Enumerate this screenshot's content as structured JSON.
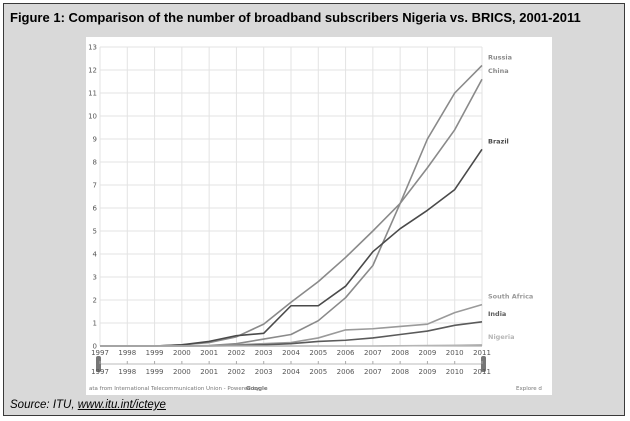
{
  "figure": {
    "title": "Figure 1: Comparison of the number of broadband subscribers Nigeria vs. BRICS, 2001-2011",
    "source_prefix": "Source: ITU, ",
    "source_link": "www.itu.int/icteye"
  },
  "chart_footer": {
    "attribution": "ata from International Telecommunication Union - Powered by",
    "powered_by": "Google",
    "explore": "Explore d"
  },
  "chart_data": {
    "type": "line",
    "title": "",
    "xlabel": "",
    "ylabel": "",
    "x": [
      1997,
      1998,
      1999,
      2000,
      2001,
      2002,
      2003,
      2004,
      2005,
      2006,
      2007,
      2008,
      2009,
      2010,
      2011
    ],
    "xlim": [
      1997,
      2011
    ],
    "ylim": [
      0,
      13
    ],
    "yticks": [
      0,
      1,
      2,
      3,
      4,
      5,
      6,
      7,
      8,
      9,
      10,
      11,
      12,
      13
    ],
    "grid": true,
    "timeline_ticks": [
      1997,
      1998,
      1999,
      2000,
      2001,
      2002,
      2003,
      2004,
      2005,
      2006,
      2007,
      2008,
      2009,
      2010,
      2011
    ],
    "series": [
      {
        "name": "Russia",
        "color": "#8a8a8a",
        "values": [
          0,
          0,
          0,
          0,
          0.02,
          0.1,
          0.3,
          0.5,
          1.1,
          2.1,
          3.5,
          6.2,
          9.0,
          11.0,
          12.2
        ]
      },
      {
        "name": "China",
        "color": "#8a8a8a",
        "values": [
          0,
          0,
          0,
          0.05,
          0.15,
          0.4,
          0.95,
          1.9,
          2.8,
          3.85,
          5.0,
          6.2,
          7.75,
          9.4,
          11.6
        ]
      },
      {
        "name": "Brazil",
        "color": "#4a4a4a",
        "values": [
          0,
          0,
          0,
          0.05,
          0.2,
          0.45,
          0.55,
          1.75,
          1.75,
          2.6,
          4.1,
          5.1,
          5.9,
          6.8,
          8.55
        ]
      },
      {
        "name": "South Africa",
        "color": "#9a9a9a",
        "values": [
          0,
          0,
          0,
          0,
          0,
          0.05,
          0.1,
          0.15,
          0.35,
          0.7,
          0.75,
          0.85,
          0.95,
          1.45,
          1.8
        ]
      },
      {
        "name": "India",
        "color": "#5a5a5a",
        "values": [
          0,
          0,
          0,
          0,
          0,
          0.02,
          0.05,
          0.1,
          0.2,
          0.25,
          0.35,
          0.5,
          0.65,
          0.9,
          1.05
        ]
      },
      {
        "name": "Nigeria",
        "color": "#b5b5b5",
        "values": [
          0,
          0,
          0,
          0,
          0,
          0,
          0,
          0,
          0,
          0,
          0,
          0.01,
          0.02,
          0.03,
          0.05
        ]
      }
    ]
  }
}
